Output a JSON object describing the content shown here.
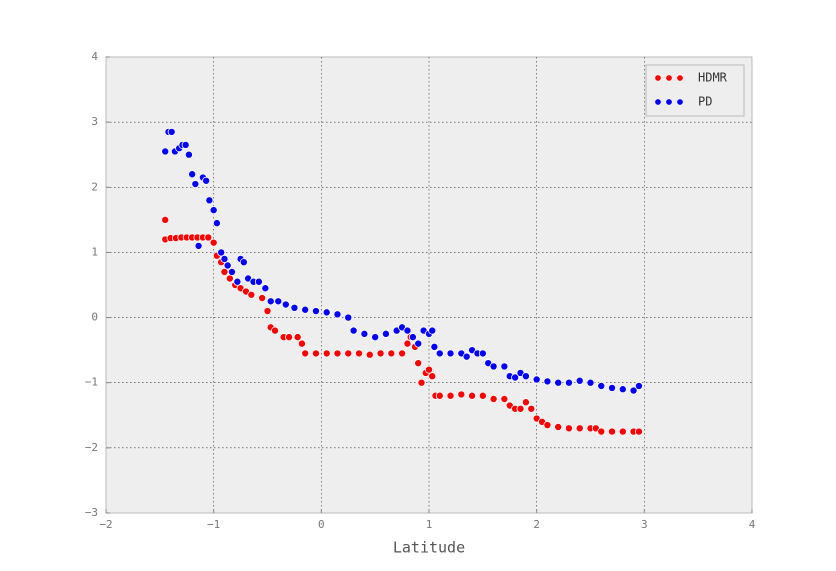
{
  "chart_data": {
    "type": "scatter",
    "x_label": "Latitude",
    "xlim": [
      -2,
      4
    ],
    "ylim": [
      -3,
      4
    ],
    "xticks": [
      {
        "value": -2,
        "label": "−2"
      },
      {
        "value": -1,
        "label": "−1"
      },
      0,
      1,
      2,
      3,
      4
    ],
    "yticks": [
      {
        "value": -3,
        "label": "−3"
      },
      {
        "value": -2,
        "label": "−2"
      },
      {
        "value": -1,
        "label": "−1"
      },
      0,
      1,
      2,
      3,
      4
    ],
    "grid": true,
    "legend": "upper right",
    "series": [
      {
        "name": "HDMR",
        "color": "#ff0000",
        "x": [
          -1.45,
          -1.45,
          -1.4,
          -1.35,
          -1.3,
          -1.25,
          -1.2,
          -1.15,
          -1.1,
          -1.05,
          -1.0,
          -0.97,
          -0.93,
          -0.9,
          -0.85,
          -0.8,
          -0.75,
          -0.7,
          -0.65,
          -0.55,
          -0.5,
          -0.47,
          -0.43,
          -0.35,
          -0.3,
          -0.22,
          -0.18,
          -0.15,
          -0.05,
          0.05,
          0.15,
          0.25,
          0.35,
          0.45,
          0.55,
          0.65,
          0.75,
          0.8,
          0.83,
          0.87,
          0.9,
          0.93,
          0.97,
          1.0,
          1.03,
          1.06,
          1.1,
          1.2,
          1.3,
          1.4,
          1.5,
          1.6,
          1.7,
          1.75,
          1.8,
          1.85,
          1.9,
          1.95,
          2.0,
          2.05,
          2.1,
          2.2,
          2.3,
          2.4,
          2.5,
          2.55,
          2.6,
          2.7,
          2.8,
          2.9,
          2.95
        ],
        "values": [
          1.5,
          1.2,
          1.22,
          1.22,
          1.23,
          1.23,
          1.23,
          1.23,
          1.23,
          1.23,
          1.15,
          0.95,
          0.85,
          0.7,
          0.6,
          0.5,
          0.45,
          0.4,
          0.35,
          0.3,
          0.1,
          -0.15,
          -0.2,
          -0.3,
          -0.3,
          -0.3,
          -0.4,
          -0.55,
          -0.55,
          -0.55,
          -0.55,
          -0.55,
          -0.55,
          -0.57,
          -0.55,
          -0.55,
          -0.55,
          -0.4,
          -0.3,
          -0.45,
          -0.7,
          -1.0,
          -0.85,
          -0.8,
          -0.9,
          -1.2,
          -1.2,
          -1.2,
          -1.18,
          -1.2,
          -1.2,
          -1.25,
          -1.25,
          -1.35,
          -1.4,
          -1.4,
          -1.3,
          -1.4,
          -1.55,
          -1.6,
          -1.65,
          -1.68,
          -1.7,
          -1.7,
          -1.7,
          -1.7,
          -1.75,
          -1.75,
          -1.75,
          -1.75,
          -1.75
        ]
      },
      {
        "name": "PD",
        "color": "#0000ff",
        "x": [
          -1.45,
          -1.42,
          -1.39,
          -1.36,
          -1.32,
          -1.29,
          -1.26,
          -1.23,
          -1.2,
          -1.17,
          -1.14,
          -1.1,
          -1.07,
          -1.04,
          -1.0,
          -0.97,
          -0.93,
          -0.9,
          -0.87,
          -0.83,
          -0.78,
          -0.75,
          -0.72,
          -0.68,
          -0.63,
          -0.58,
          -0.52,
          -0.47,
          -0.4,
          -0.33,
          -0.25,
          -0.15,
          -0.05,
          0.05,
          0.15,
          0.25,
          0.3,
          0.4,
          0.5,
          0.6,
          0.7,
          0.75,
          0.8,
          0.85,
          0.9,
          0.95,
          1.0,
          1.03,
          1.05,
          1.1,
          1.2,
          1.3,
          1.35,
          1.4,
          1.45,
          1.5,
          1.55,
          1.6,
          1.7,
          1.75,
          1.8,
          1.85,
          1.9,
          2.0,
          2.1,
          2.2,
          2.3,
          2.4,
          2.5,
          2.6,
          2.7,
          2.8,
          2.9,
          2.95
        ],
        "values": [
          2.55,
          2.85,
          2.85,
          2.55,
          2.6,
          2.65,
          2.65,
          2.5,
          2.2,
          2.05,
          1.1,
          2.15,
          2.1,
          1.8,
          1.65,
          1.45,
          1.0,
          0.9,
          0.8,
          0.7,
          0.55,
          0.9,
          0.85,
          0.6,
          0.55,
          0.55,
          0.45,
          0.25,
          0.25,
          0.2,
          0.15,
          0.12,
          0.1,
          0.08,
          0.05,
          0.0,
          -0.2,
          -0.25,
          -0.3,
          -0.25,
          -0.2,
          -0.15,
          -0.2,
          -0.3,
          -0.4,
          -0.2,
          -0.25,
          -0.2,
          -0.45,
          -0.55,
          -0.55,
          -0.55,
          -0.6,
          -0.5,
          -0.55,
          -0.55,
          -0.7,
          -0.75,
          -0.75,
          -0.9,
          -0.92,
          -0.85,
          -0.9,
          -0.95,
          -0.98,
          -1.0,
          -1.0,
          -0.97,
          -1.0,
          -1.05,
          -1.08,
          -1.1,
          -1.12,
          -1.05
        ]
      }
    ]
  }
}
